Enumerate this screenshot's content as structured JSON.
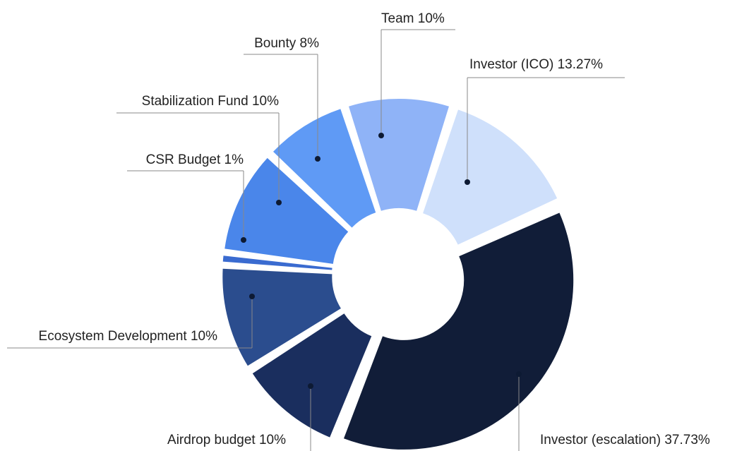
{
  "chart_data": {
    "type": "donut",
    "categories": [
      "Team",
      "Investor (ICO)",
      "Investor (escalation)",
      "Airdrop budget",
      "Ecosystem Development",
      "CSR Budget",
      "Stabilization Fund",
      "Bounty"
    ],
    "values": [
      10,
      13.27,
      37.73,
      10,
      10,
      1,
      10,
      8
    ],
    "value_labels": [
      "10%",
      "13.27%",
      "37.73%",
      "10%",
      "10%",
      "1%",
      "10%",
      "8%"
    ],
    "colors": [
      "#8fb3f7",
      "#cfe0fb",
      "#111d38",
      "#1a2e5e",
      "#2b4d8e",
      "#3a6bd0",
      "#4a86ea",
      "#5f9af5"
    ]
  }
}
